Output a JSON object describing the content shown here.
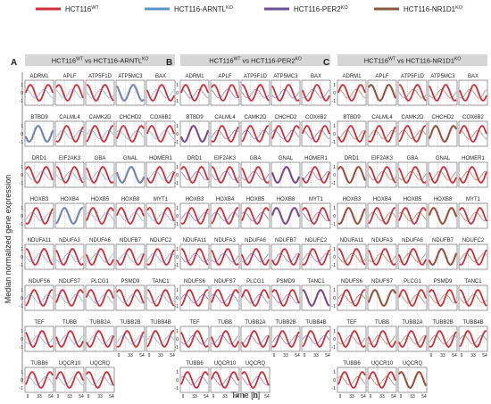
{
  "legend": [
    {
      "label": "HCT116",
      "sup": "WT",
      "color": "#cf2f3a"
    },
    {
      "label": "HCT116-ARNTL",
      "sup": "KO",
      "color": "#5b96c8"
    },
    {
      "label": "HCT116-PER2",
      "sup": "KO",
      "color": "#6a4f99"
    },
    {
      "label": "HCT116-NR1D1",
      "sup": "KO",
      "color": "#8a5a3f"
    }
  ],
  "panels": [
    {
      "letter": "A",
      "title": "HCT116",
      "title_sup1": "WT",
      "title_mid": " vs HCT116-ARNTL",
      "title_sup2": "KO",
      "ko_color": "#5b96c8"
    },
    {
      "letter": "B",
      "title": "HCT116",
      "title_sup1": "WT",
      "title_mid": " vs HCT116-PER2",
      "title_sup2": "KO",
      "ko_color": "#6a4f99"
    },
    {
      "letter": "C",
      "title": "HCT116",
      "title_sup1": "WT",
      "title_mid": " vs HCT116-NR1D1",
      "title_sup2": "KO",
      "ko_color": "#8a5a3f"
    }
  ],
  "chart_data": {
    "type": "line",
    "ylabel": "Median normalized gene expression",
    "xlabel": "Time [h]",
    "x_ticks": [
      "9",
      "33",
      "54"
    ],
    "y_ticks": [
      "1",
      "0",
      "-1"
    ],
    "genes": [
      "ADRM1",
      "APLF",
      "ATP5F1D",
      "ATP5MC3",
      "BAX",
      "BTBD9",
      "CALML4",
      "CAMK2D",
      "CHCHD2",
      "COX6B2",
      "DRD1",
      "EIF2AK3",
      "GBA",
      "GNAL",
      "HOMER1",
      "HOXB3",
      "HOXB4",
      "HOXB5",
      "HOXB8",
      "MYT1",
      "NDUFA11",
      "NDUFA3",
      "NDUFA6",
      "NDUFB7",
      "NDUFC2",
      "NDUFS6",
      "NDUFS7",
      "PLCG1",
      "PSMD9",
      "TANC1",
      "TEF",
      "TUBB",
      "TUBB2A",
      "TUBB2B",
      "TUBB4B",
      "TUBB6",
      "UQCR10",
      "UQCRQ"
    ],
    "highlight": {
      "A": [
        "HOXB4",
        "GNAL",
        "BTBD9",
        "ATP5MC3"
      ],
      "B": [
        "BTBD9",
        "HOXB8",
        "TANC1",
        "GNAL"
      ],
      "C": [
        "APLF",
        "HOXB3",
        "DRD1",
        "HOXB8",
        "NDUFB7",
        "UQCRQ",
        "CHCHD2",
        "NDUFS7"
      ]
    }
  }
}
